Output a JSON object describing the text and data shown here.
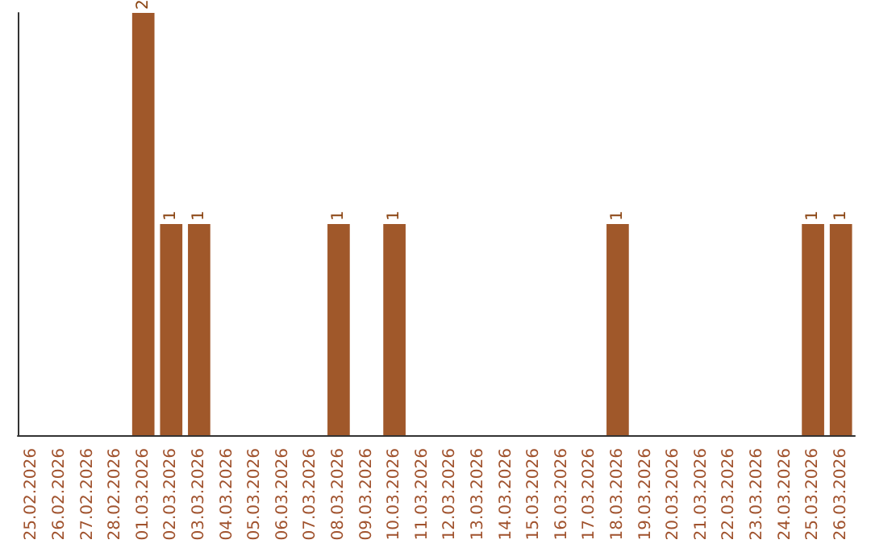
{
  "chart_data": {
    "type": "bar",
    "categories": [
      "25.02.2026",
      "26.02.2026",
      "27.02.2026",
      "28.02.2026",
      "01.03.2026",
      "02.03.2026",
      "03.03.2026",
      "04.03.2026",
      "05.03.2026",
      "06.03.2026",
      "07.03.2026",
      "08.03.2026",
      "09.03.2026",
      "10.03.2026",
      "11.03.2026",
      "12.03.2026",
      "13.03.2026",
      "14.03.2026",
      "15.03.2026",
      "16.03.2026",
      "17.03.2026",
      "18.03.2026",
      "19.03.2026",
      "20.03.2026",
      "21.03.2026",
      "22.03.2026",
      "23.03.2026",
      "24.03.2026",
      "25.03.2026",
      "26.03.2026"
    ],
    "values": [
      0,
      0,
      0,
      0,
      2,
      1,
      1,
      0,
      0,
      0,
      0,
      1,
      0,
      1,
      0,
      0,
      0,
      0,
      0,
      0,
      0,
      1,
      0,
      0,
      0,
      0,
      0,
      0,
      1,
      1
    ],
    "value_labels": [
      null,
      null,
      null,
      null,
      "2",
      "1",
      "1",
      null,
      null,
      null,
      null,
      "1",
      null,
      "1",
      null,
      null,
      null,
      null,
      null,
      null,
      null,
      "1",
      null,
      null,
      null,
      null,
      null,
      null,
      "1",
      "1"
    ],
    "color": "#a0582a",
    "grid": false,
    "tick_labels": "x"
  }
}
